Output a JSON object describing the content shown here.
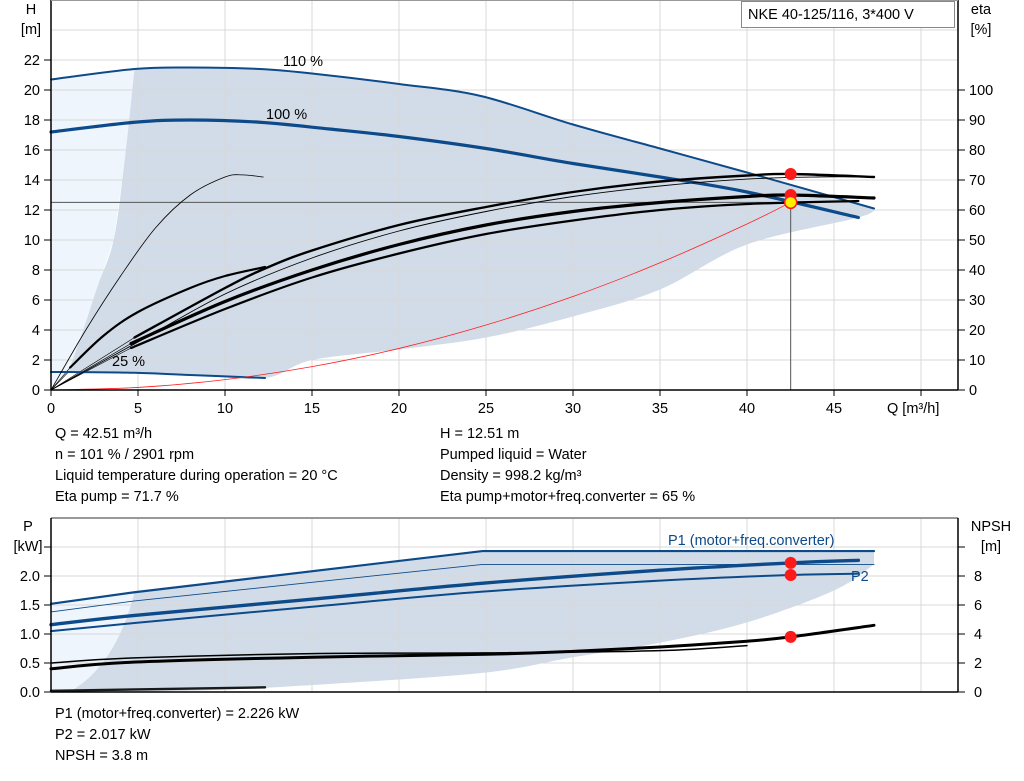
{
  "chart_data": [
    {
      "type": "line",
      "title": "NKE 40-125/116, 3*400 V",
      "xlabel": "Q [m³/h]",
      "ylabel": [
        "H",
        "[m]"
      ],
      "y2label": [
        "eta",
        "[%]"
      ],
      "xlim": [
        0,
        52
      ],
      "ylim": [
        0,
        26
      ],
      "y2lim": [
        0,
        130
      ],
      "grid": true,
      "xticks": [
        0,
        5,
        10,
        15,
        20,
        25,
        30,
        35,
        40,
        45
      ],
      "xgrid": [
        0,
        5,
        10,
        15,
        20,
        25,
        30,
        35,
        40,
        45,
        50
      ],
      "yticks": [
        0,
        2,
        4,
        6,
        8,
        10,
        12,
        14,
        16,
        18,
        20,
        22
      ],
      "ygrid": [
        0,
        2,
        4,
        6,
        8,
        10,
        12,
        14,
        16,
        18,
        20,
        22,
        24
      ],
      "y2ticks": [
        0,
        10,
        20,
        30,
        40,
        50,
        60,
        70,
        80,
        90,
        100
      ],
      "series": [
        {
          "name": "110 %",
          "axis": "H",
          "width": 2,
          "color": "#0d4a8a",
          "x": [
            0,
            4.8,
            8,
            12,
            15,
            20,
            24.7,
            30,
            35,
            40,
            47.3
          ],
          "y": [
            20.7,
            21.4,
            21.5,
            21.4,
            21.1,
            20.4,
            19.6,
            17.7,
            16.1,
            14.5,
            12.1
          ]
        },
        {
          "name": "100 %",
          "axis": "H",
          "width": 3.2,
          "color": "#0d4a8a",
          "x": [
            0,
            4.8,
            8,
            12,
            16,
            20,
            25,
            30,
            35,
            40,
            46.4
          ],
          "y": [
            17.2,
            17.85,
            18.0,
            17.85,
            17.4,
            16.9,
            16.1,
            15.1,
            14.2,
            13.2,
            11.5
          ]
        },
        {
          "name": "25 %",
          "axis": "H",
          "width": 2,
          "color": "#0d4a8a",
          "x": [
            0,
            1,
            4.8,
            8,
            12.3
          ],
          "y": [
            1.2,
            1.2,
            1.15,
            1.0,
            0.8
          ]
        },
        {
          "axis": "eta",
          "width": 2.4,
          "color": "#000000",
          "x": [
            4.8,
            10,
            12.3,
            15,
            20,
            25,
            30,
            35,
            40,
            42.5,
            47.3
          ],
          "y": [
            17.5,
            34,
            40.5,
            46.5,
            55,
            61,
            66,
            69.5,
            71.5,
            72,
            71
          ]
        },
        {
          "axis": "eta",
          "width": 0.9,
          "color": "#000000",
          "x": [
            0,
            5,
            10,
            15,
            20,
            25,
            30,
            35,
            40,
            44,
            47.3
          ],
          "y": [
            0,
            16,
            32,
            44,
            53,
            59.5,
            64.5,
            68,
            70.3,
            71,
            71
          ]
        },
        {
          "axis": "eta",
          "width": 2.2,
          "color": "#000000",
          "x": [
            1.1,
            3,
            5,
            8,
            10,
            12.3
          ],
          "y": [
            7.5,
            18,
            26,
            34,
            38,
            41
          ]
        },
        {
          "axis": "eta",
          "width": 0.8,
          "color": "#000000",
          "x": [
            0,
            2,
            4,
            6,
            8,
            10,
            11,
            12.2
          ],
          "y": [
            0,
            20,
            38,
            54,
            65,
            71,
            71.7,
            71
          ]
        },
        {
          "axis": "eta",
          "width": 3.2,
          "color": "#000000",
          "x": [
            4.6,
            10,
            15,
            20,
            25,
            30,
            35,
            40,
            42.5,
            47.3
          ],
          "y": [
            15.5,
            29.5,
            40,
            48.5,
            55,
            59.5,
            62.5,
            64.5,
            65,
            64
          ]
        },
        {
          "axis": "eta",
          "width": 2.2,
          "color": "#000000",
          "x": [
            4.6,
            10,
            15,
            20,
            25,
            30,
            35,
            40,
            46.4
          ],
          "y": [
            14,
            27,
            37.5,
            45.5,
            52,
            56.5,
            60,
            62,
            63
          ]
        },
        {
          "axis": "H",
          "width": 0.8,
          "color": "#ff2020",
          "type": "system-curve",
          "x": [
            0,
            5,
            10,
            15,
            20,
            25,
            30,
            35,
            40,
            42.51
          ],
          "y": [
            0,
            0.17,
            0.69,
            1.56,
            2.77,
            4.33,
            6.23,
            8.48,
            11.07,
            12.51
          ]
        }
      ],
      "curve_labels": [
        "110 %",
        "100 %",
        "25 %"
      ],
      "operating_point": {
        "Q": 42.51,
        "H": 12.51,
        "eta_pump": 72,
        "eta_total": 65
      },
      "range_upper": {
        "x": [
          4.8,
          8,
          12,
          15,
          20,
          24.7,
          30,
          35,
          40,
          47.3
        ],
        "y": [
          21.4,
          21.5,
          21.4,
          21.1,
          20.4,
          19.6,
          17.7,
          16.1,
          14.5,
          12.1
        ]
      },
      "range_lower": {
        "x": [
          47.3,
          46.4,
          40,
          35,
          30,
          25,
          20,
          15,
          12.3,
          8,
          4.8,
          1
        ],
        "y": [
          12.1,
          11.5,
          9.7,
          6.7,
          4.9,
          3.5,
          2.7,
          2.0,
          0.8,
          1.0,
          1.15,
          1.2
        ]
      },
      "range_left": {
        "x": [
          1,
          1.85,
          2.7,
          3.6,
          4.2,
          4.8
        ],
        "y": [
          1.2,
          4,
          7,
          10,
          15,
          21.4
        ]
      }
    },
    {
      "type": "line",
      "ylabel": [
        "P",
        "[kW]"
      ],
      "y2label": [
        "NPSH",
        "[m]"
      ],
      "xlim": [
        0,
        52
      ],
      "ylim": [
        0,
        3
      ],
      "y2lim": [
        0,
        12
      ],
      "grid": true,
      "yticks": [
        "0.0",
        "0.5",
        "1.0",
        "1.5",
        "2.0"
      ],
      "y2ticks": [
        0,
        2,
        4,
        6,
        8
      ],
      "series": [
        {
          "name": "P1 (motor+freq.converter)",
          "axis": "P",
          "width": 2.2,
          "color": "#0d4a8a",
          "x": [
            0,
            4.8,
            24.8,
            47.3
          ],
          "y": [
            1.52,
            1.72,
            2.43,
            2.43
          ]
        },
        {
          "axis": "P",
          "width": 0.9,
          "color": "#0d4a8a",
          "x": [
            0,
            4.8,
            24.8,
            47.3
          ],
          "y": [
            1.38,
            1.57,
            2.2,
            2.2
          ]
        },
        {
          "axis": "P",
          "width": 3.4,
          "color": "#0d4a8a",
          "x": [
            0,
            4.8,
            15,
            25,
            35,
            42.5,
            46.4
          ],
          "y": [
            1.16,
            1.32,
            1.6,
            1.88,
            2.1,
            2.226,
            2.27
          ]
        },
        {
          "name": "P2",
          "axis": "P",
          "width": 2,
          "color": "#0d4a8a",
          "x": [
            0,
            4.8,
            15,
            24.8,
            35,
            42.5,
            46.4
          ],
          "y": [
            1.05,
            1.19,
            1.47,
            1.73,
            1.92,
            2.017,
            2.04
          ]
        },
        {
          "axis": "P",
          "width": 2.4,
          "color": "#1a1a1a",
          "x": [
            0,
            12.3
          ],
          "y": [
            0.02,
            0.08
          ]
        },
        {
          "axis": "NPSH",
          "width": 1.5,
          "color": "#000000",
          "x": [
            0,
            4.8,
            15,
            25,
            35,
            40
          ],
          "y": [
            2.0,
            2.35,
            2.65,
            2.7,
            2.85,
            3.2
          ]
        },
        {
          "axis": "NPSH",
          "width": 3,
          "color": "#000000",
          "x": [
            0,
            4.6,
            15,
            25,
            30,
            35,
            40,
            42.5,
            47.3
          ],
          "y": [
            1.6,
            2.05,
            2.4,
            2.6,
            2.8,
            3.1,
            3.5,
            3.8,
            4.6
          ]
        }
      ],
      "operating_point": {
        "Q": 42.51,
        "P1": 2.226,
        "P2": 2.017,
        "NPSH": 3.8
      },
      "range_upper": {
        "x": [
          4.8,
          24.8,
          47.3
        ],
        "y": [
          1.72,
          2.43,
          2.43
        ]
      },
      "range_lower": {
        "x": [
          47.3,
          45,
          40,
          35,
          30,
          24.8,
          15,
          10,
          4.8
        ],
        "y": [
          2.2,
          1.75,
          1.2,
          0.85,
          0.6,
          0.33,
          0.12,
          0.04,
          0.0
        ]
      }
    }
  ],
  "readout_top": {
    "left": [
      "Q = 42.51 m³/h",
      "n = 101 % / 2901 rpm",
      "Liquid temperature during operation = 20 °C",
      "Eta pump = 71.7 %"
    ],
    "right": [
      "H = 12.51 m",
      "Pumped liquid = Water",
      "Density = 998.2 kg/m³",
      "Eta pump+motor+freq.converter = 65 %"
    ]
  },
  "readout_bottom": [
    "P1 (motor+freq.converter) = 2.226 kW",
    "P2 = 2.017 kW",
    "NPSH = 3.8 m"
  ],
  "colors": {
    "curve_blue": "#0d4a8a",
    "range_fill": "#d1dce8",
    "range_fill_light": "#eef5fc",
    "grid": "#d9d9d9",
    "duty_point": "#ff1a1a",
    "duty_point_inner": "#ffee00",
    "system_curve": "#ff2020"
  }
}
